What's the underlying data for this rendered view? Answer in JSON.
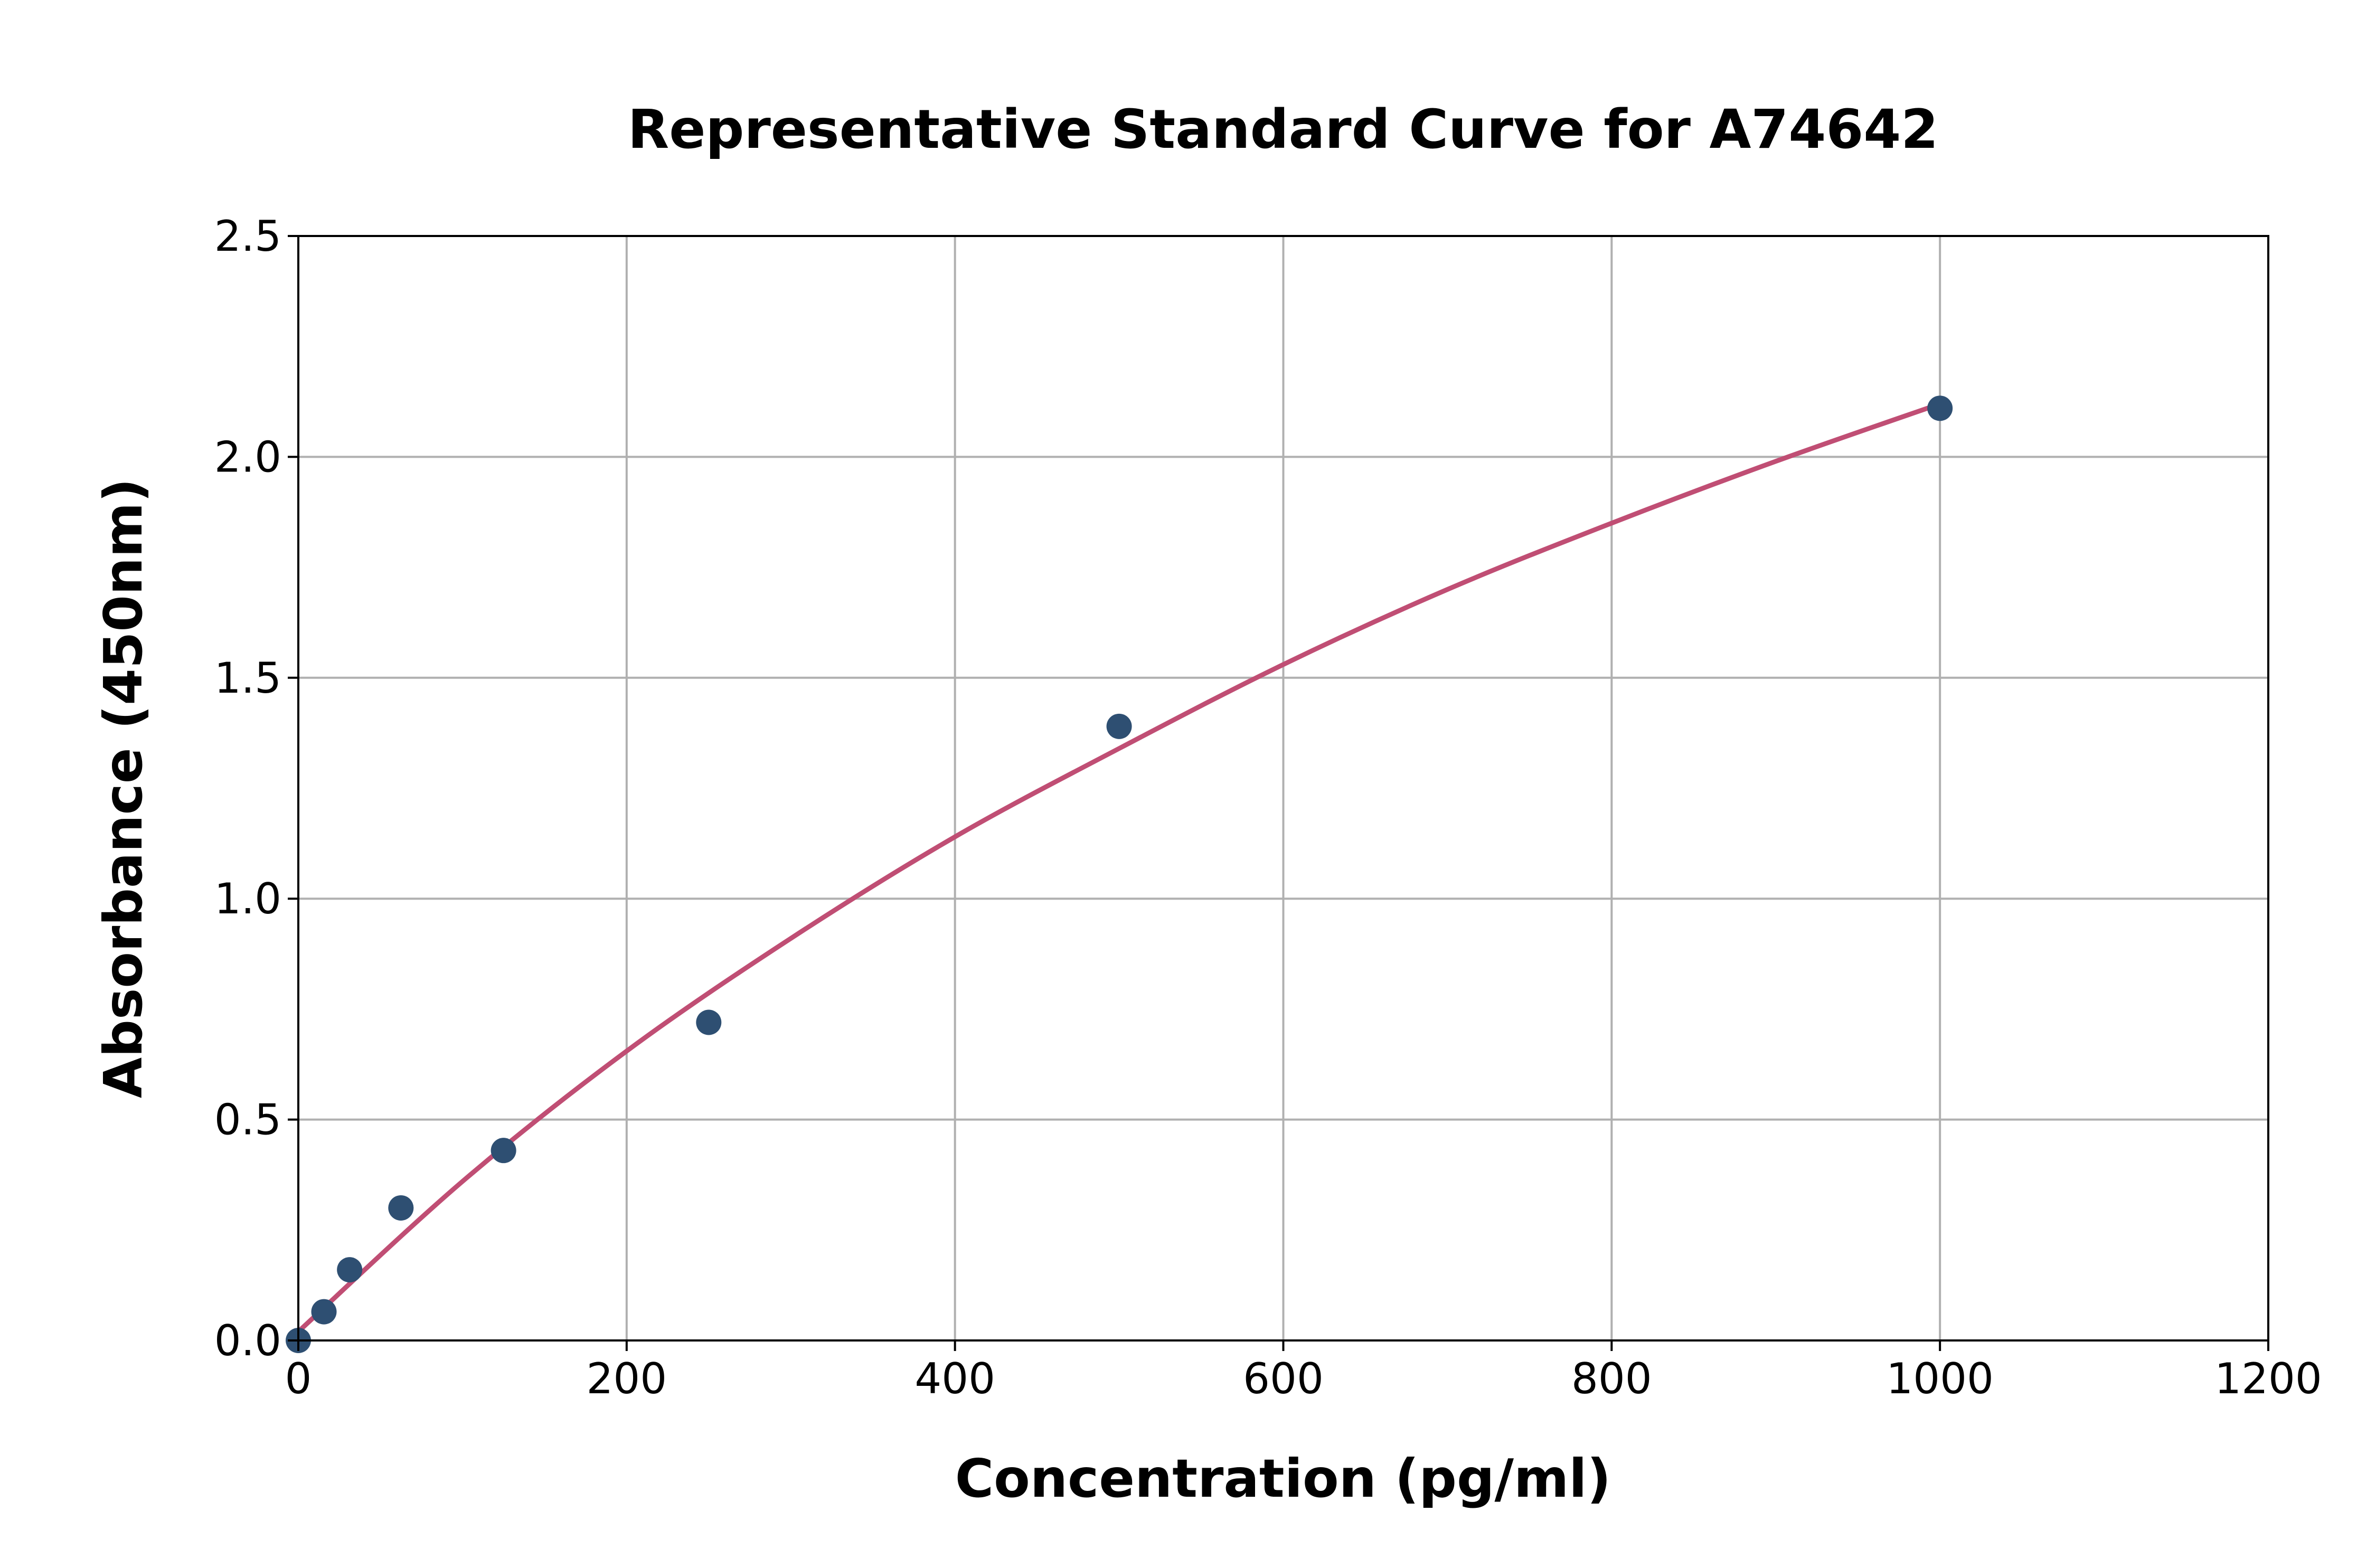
{
  "chart_data": {
    "type": "scatter",
    "title": "Representative Standard Curve for A74642",
    "xlabel": "Concentration (pg/ml)",
    "ylabel": "Absorbance (450nm)",
    "xlim": [
      0,
      1200
    ],
    "ylim": [
      0,
      2.5
    ],
    "xticks": [
      "0",
      "200",
      "400",
      "600",
      "800",
      "1000",
      "1200"
    ],
    "yticks": [
      "0.0",
      "0.5",
      "1.0",
      "1.5",
      "2.0",
      "2.5"
    ],
    "grid": true,
    "points": {
      "x": [
        0,
        15.6,
        31.25,
        62.5,
        125,
        250,
        500,
        1000
      ],
      "y": [
        0.0,
        0.065,
        0.16,
        0.3,
        0.43,
        0.72,
        1.39,
        2.11
      ],
      "color": "#2e4f72"
    },
    "fit_curve": {
      "x": [
        0,
        100,
        200,
        300,
        400,
        500,
        600,
        700,
        800,
        900,
        1000
      ],
      "y": [
        0.02,
        0.36,
        0.655,
        0.91,
        1.14,
        1.34,
        1.53,
        1.7,
        1.85,
        1.99,
        2.12
      ],
      "color": "#c04e74"
    }
  }
}
